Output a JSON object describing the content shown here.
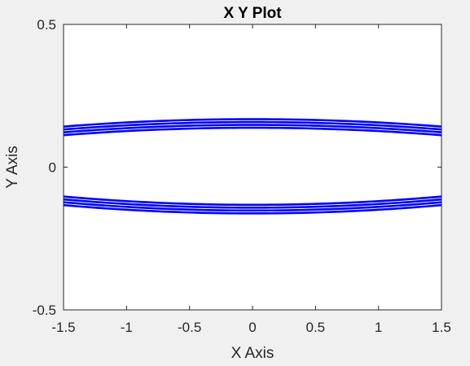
{
  "chart_data": {
    "type": "line",
    "title": "X Y Plot",
    "xlabel": "X Axis",
    "ylabel": "Y Axis",
    "xlim": [
      -1.5,
      1.5
    ],
    "ylim": [
      -0.5,
      0.5
    ],
    "x_ticks": [
      -1.5,
      -1,
      -0.5,
      0,
      0.5,
      1,
      1.5
    ],
    "x_tick_labels": [
      "-1.5",
      "-1",
      "-0.5",
      "0",
      "0.5",
      "1",
      "1.5"
    ],
    "y_ticks": [
      -0.5,
      0,
      0.5
    ],
    "y_tick_labels": [
      "-0.5",
      "0",
      "0.5"
    ],
    "grid": false,
    "series_color": "#0000ff",
    "series": [
      {
        "x": [
          -1.5,
          -0.75,
          0,
          0.75,
          1.5
        ],
        "y": [
          0.142,
          0.162,
          0.168,
          0.162,
          0.142
        ]
      },
      {
        "x": [
          -1.5,
          -0.75,
          0,
          0.75,
          1.5
        ],
        "y": [
          0.132,
          0.152,
          0.158,
          0.152,
          0.132
        ]
      },
      {
        "x": [
          -1.5,
          -0.75,
          0,
          0.75,
          1.5
        ],
        "y": [
          0.122,
          0.142,
          0.148,
          0.142,
          0.122
        ]
      },
      {
        "x": [
          -1.5,
          -0.75,
          0,
          0.75,
          1.5
        ],
        "y": [
          0.112,
          0.132,
          0.138,
          0.132,
          0.112
        ]
      },
      {
        "x": [
          -1.5,
          -0.75,
          0,
          0.75,
          1.5
        ],
        "y": [
          -0.103,
          -0.125,
          -0.132,
          -0.125,
          -0.103
        ]
      },
      {
        "x": [
          -1.5,
          -0.75,
          0,
          0.75,
          1.5
        ],
        "y": [
          -0.113,
          -0.135,
          -0.142,
          -0.135,
          -0.113
        ]
      },
      {
        "x": [
          -1.5,
          -0.75,
          0,
          0.75,
          1.5
        ],
        "y": [
          -0.123,
          -0.145,
          -0.152,
          -0.145,
          -0.123
        ]
      },
      {
        "x": [
          -1.5,
          -0.75,
          0,
          0.75,
          1.5
        ],
        "y": [
          -0.133,
          -0.155,
          -0.162,
          -0.155,
          -0.133
        ]
      }
    ]
  }
}
